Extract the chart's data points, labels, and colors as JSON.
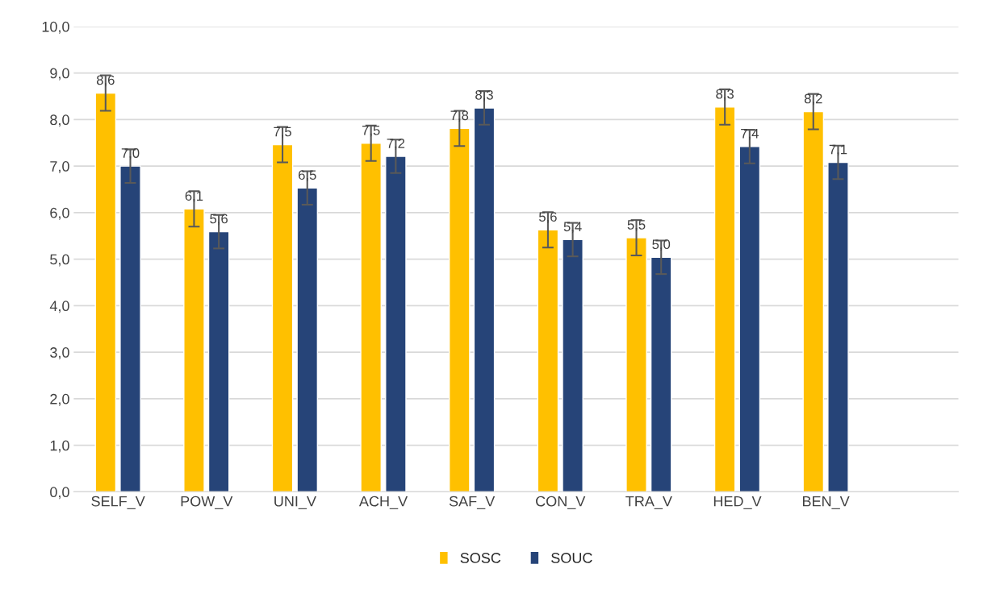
{
  "chart_data": {
    "type": "bar",
    "categories": [
      "SELF_V",
      "POW_V",
      "UNI_V",
      "ACH_V",
      "SAF_V",
      "CON_V",
      "TRA_V",
      "HED_V",
      "BEN_V",
      null
    ],
    "series": [
      {
        "name": "SOSC",
        "color": "#ffc000",
        "values": [
          8.57,
          6.08,
          7.46,
          7.49,
          7.81,
          5.63,
          5.46,
          8.27,
          8.17,
          null
        ],
        "errors": [
          0.38,
          0.38,
          0.38,
          0.38,
          0.38,
          0.38,
          0.38,
          0.38,
          0.38,
          null
        ],
        "value_labels": [
          "8,6",
          "6,1",
          "7,5",
          "7,5",
          "7,8",
          "5,6",
          "5,5",
          "8,3",
          "8,2",
          null
        ]
      },
      {
        "name": "SOUC",
        "color": "#264478",
        "values": [
          7.0,
          5.59,
          6.53,
          7.21,
          8.25,
          5.42,
          5.04,
          7.42,
          7.08,
          null
        ],
        "errors": [
          0.36,
          0.36,
          0.36,
          0.36,
          0.36,
          0.36,
          0.36,
          0.36,
          0.36,
          null
        ],
        "value_labels": [
          "7,0",
          "5,6",
          "6,5",
          "7,2",
          "8,3",
          "5,4",
          "5,0",
          "7,4",
          "7,1",
          null
        ]
      }
    ],
    "ylim": [
      0,
      10
    ],
    "yticks": [
      {
        "value": 0,
        "label": "0,0"
      },
      {
        "value": 1,
        "label": "1,0"
      },
      {
        "value": 2,
        "label": "2,0"
      },
      {
        "value": 3,
        "label": "3,0"
      },
      {
        "value": 4,
        "label": "4,0"
      },
      {
        "value": 5,
        "label": "5,0"
      },
      {
        "value": 6,
        "label": "6,0"
      },
      {
        "value": 7,
        "label": "7,0"
      },
      {
        "value": 8,
        "label": "8,0"
      },
      {
        "value": 9,
        "label": "9,0"
      },
      {
        "value": 10,
        "label": "10,0"
      }
    ],
    "grid": "y",
    "legend": "bottom"
  }
}
